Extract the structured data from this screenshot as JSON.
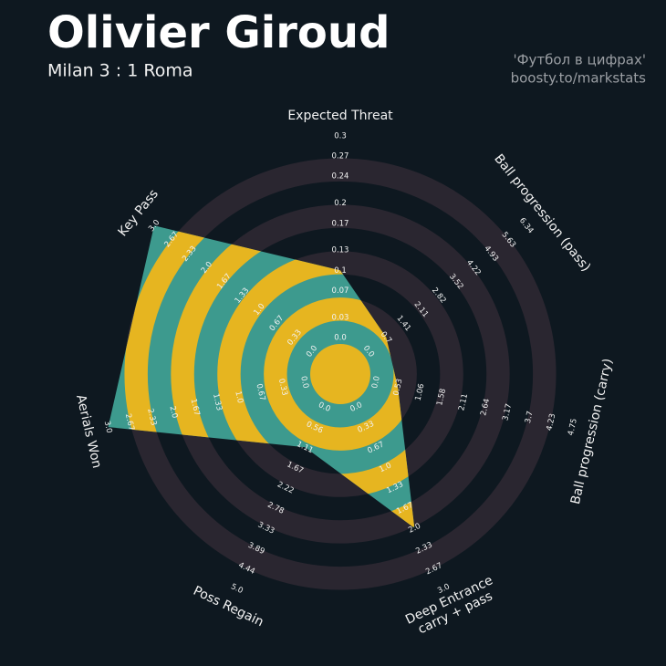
{
  "chart_data": {
    "type": "radar",
    "title": "Olivier Giroud",
    "subtitle": "Milan 3 : 1 Roma",
    "annotations": [
      "'Футбол в цифрах'",
      "boosty.to/markstats"
    ],
    "categories": [
      "Expected Threat",
      "Ball progression (pass)",
      "Ball progression (carry)",
      "Deep Entrance\ncarry + pass",
      "Poss Regain",
      "Aerials Won",
      "Key Pass"
    ],
    "values": [
      0.1,
      0.7,
      0.53,
      2.0,
      1.11,
      3.0,
      3.0
    ],
    "lims": [
      [
        0,
        0.3
      ],
      [
        0,
        6.34
      ],
      [
        0,
        4.75
      ],
      [
        0,
        3
      ],
      [
        0,
        5
      ],
      [
        0,
        3
      ],
      [
        0,
        3
      ]
    ],
    "ticks": [
      [
        {
          "value": 0,
          "label": "0.0"
        },
        0.03,
        0.07,
        0.1,
        0.13,
        0.17,
        0.2,
        0.24,
        0.27,
        0.3
      ],
      [
        {
          "value": 0,
          "label": "0.0"
        },
        0.7,
        1.41,
        2.11,
        2.82,
        3.52,
        4.22,
        4.93,
        5.63,
        6.34
      ],
      [
        {
          "value": 0,
          "label": "0.0"
        },
        0.53,
        1.06,
        1.58,
        2.11,
        2.64,
        3.17,
        3.7,
        4.23,
        4.75
      ],
      [
        {
          "value": 0,
          "label": "0.0"
        },
        0.33,
        0.67,
        {
          "value": 1,
          "label": "1.0"
        },
        1.33,
        1.67,
        {
          "value": 2,
          "label": "2.0"
        },
        2.33,
        2.67,
        {
          "value": 3,
          "label": "3.0"
        }
      ],
      [
        {
          "value": 0,
          "label": "0.0"
        },
        0.56,
        1.11,
        1.67,
        2.22,
        2.78,
        3.33,
        3.89,
        4.44,
        {
          "value": 5,
          "label": "5.0"
        }
      ],
      [
        {
          "value": 0,
          "label": "0.0"
        },
        0.33,
        0.67,
        {
          "value": 1,
          "label": "1.0"
        },
        1.33,
        1.67,
        {
          "value": 2,
          "label": "2.0"
        },
        2.33,
        2.67,
        {
          "value": 3,
          "label": "3.0"
        }
      ],
      [
        {
          "value": 0,
          "label": "0.0"
        },
        0.33,
        0.67,
        {
          "value": 1,
          "label": "1.0"
        },
        1.33,
        1.67,
        {
          "value": 2,
          "label": "2.0"
        },
        2.33,
        2.67,
        {
          "value": 3,
          "label": "3.0"
        }
      ]
    ],
    "color": "#3d9a8e",
    "ring_color": "#e6b520",
    "grid_color": "#2a2630"
  }
}
